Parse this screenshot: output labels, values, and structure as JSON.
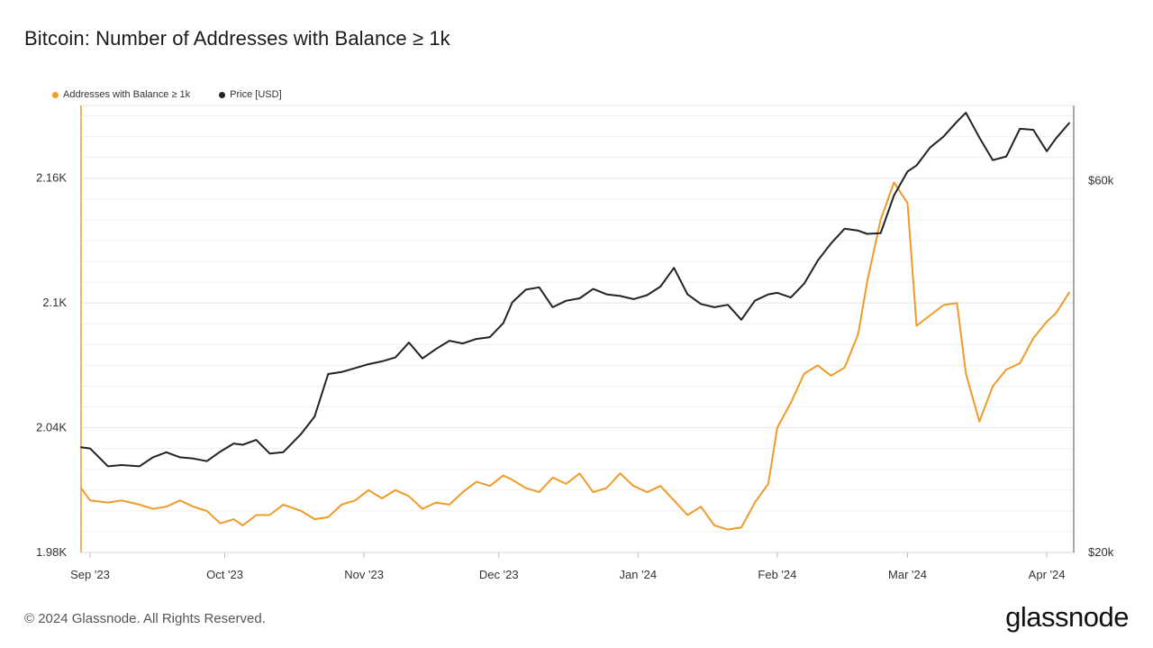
{
  "title": "Bitcoin: Number of Addresses with Balance ≥ 1k",
  "footer": "© 2024 Glassnode. All Rights Reserved.",
  "brand": "glassnode",
  "chart_data": {
    "type": "line",
    "title": "Bitcoin: Number of Addresses with Balance ≥ 1k",
    "legend": {
      "placement": "top-left",
      "entries": [
        "Addresses with Balance ≥ 1k",
        "Price [USD]"
      ]
    },
    "grid": true,
    "x_range": [
      "2023-08-30",
      "2024-04-07"
    ],
    "x_ticks": [
      {
        "date": "2023-09-01",
        "label": "Sep '23"
      },
      {
        "date": "2023-10-01",
        "label": "Oct '23"
      },
      {
        "date": "2023-11-01",
        "label": "Nov '23"
      },
      {
        "date": "2023-12-01",
        "label": "Dec '23"
      },
      {
        "date": "2024-01-01",
        "label": "Jan '24"
      },
      {
        "date": "2024-02-01",
        "label": "Feb '24"
      },
      {
        "date": "2024-03-01",
        "label": "Mar '24"
      },
      {
        "date": "2024-04-01",
        "label": "Apr '24"
      }
    ],
    "y_left": {
      "range": [
        1980,
        2195
      ],
      "ticks": [
        {
          "value": 1980,
          "label": "1.98K"
        },
        {
          "value": 2040,
          "label": "2.04K"
        },
        {
          "value": 2100,
          "label": "2.1K"
        },
        {
          "value": 2160,
          "label": "2.16K"
        }
      ]
    },
    "y_right": {
      "scale": "log",
      "range": [
        20000,
        75000
      ],
      "ticks": [
        {
          "value": 20000,
          "label": "$20k"
        },
        {
          "value": 60000,
          "label": "$60k"
        }
      ]
    },
    "series": [
      {
        "name": "Addresses with Balance ≥ 1k",
        "color": "#f09a2a",
        "axis": "left",
        "points": [
          [
            "2023-08-30",
            2011
          ],
          [
            "2023-09-01",
            2005
          ],
          [
            "2023-09-05",
            2004
          ],
          [
            "2023-09-08",
            2005
          ],
          [
            "2023-09-12",
            2003
          ],
          [
            "2023-09-15",
            2001
          ],
          [
            "2023-09-18",
            2002
          ],
          [
            "2023-09-21",
            2005
          ],
          [
            "2023-09-24",
            2002
          ],
          [
            "2023-09-27",
            2000
          ],
          [
            "2023-09-30",
            1994
          ],
          [
            "2023-10-03",
            1996
          ],
          [
            "2023-10-05",
            1993
          ],
          [
            "2023-10-08",
            1998
          ],
          [
            "2023-10-11",
            1998
          ],
          [
            "2023-10-14",
            2003
          ],
          [
            "2023-10-18",
            2000
          ],
          [
            "2023-10-21",
            1996
          ],
          [
            "2023-10-24",
            1997
          ],
          [
            "2023-10-27",
            2003
          ],
          [
            "2023-10-30",
            2005
          ],
          [
            "2023-11-02",
            2010
          ],
          [
            "2023-11-05",
            2006
          ],
          [
            "2023-11-08",
            2010
          ],
          [
            "2023-11-11",
            2007
          ],
          [
            "2023-11-14",
            2001
          ],
          [
            "2023-11-17",
            2004
          ],
          [
            "2023-11-20",
            2003
          ],
          [
            "2023-11-23",
            2009
          ],
          [
            "2023-11-26",
            2014
          ],
          [
            "2023-11-29",
            2012
          ],
          [
            "2023-12-02",
            2017
          ],
          [
            "2023-12-04",
            2015
          ],
          [
            "2023-12-07",
            2011
          ],
          [
            "2023-12-10",
            2009
          ],
          [
            "2023-12-13",
            2016
          ],
          [
            "2023-12-16",
            2013
          ],
          [
            "2023-12-19",
            2018
          ],
          [
            "2023-12-22",
            2009
          ],
          [
            "2023-12-25",
            2011
          ],
          [
            "2023-12-28",
            2018
          ],
          [
            "2023-12-31",
            2012
          ],
          [
            "2024-01-03",
            2009
          ],
          [
            "2024-01-06",
            2012
          ],
          [
            "2024-01-09",
            2005
          ],
          [
            "2024-01-12",
            1998
          ],
          [
            "2024-01-15",
            2002
          ],
          [
            "2024-01-18",
            1993
          ],
          [
            "2024-01-21",
            1991
          ],
          [
            "2024-01-24",
            1992
          ],
          [
            "2024-01-27",
            2004
          ],
          [
            "2024-01-30",
            2013
          ],
          [
            "2024-02-01",
            2040
          ],
          [
            "2024-02-04",
            2052
          ],
          [
            "2024-02-07",
            2066
          ],
          [
            "2024-02-10",
            2070
          ],
          [
            "2024-02-13",
            2065
          ],
          [
            "2024-02-16",
            2069
          ],
          [
            "2024-02-19",
            2085
          ],
          [
            "2024-02-21",
            2110
          ],
          [
            "2024-02-24",
            2140
          ],
          [
            "2024-02-27",
            2158
          ],
          [
            "2024-03-01",
            2148
          ],
          [
            "2024-03-03",
            2089
          ],
          [
            "2024-03-06",
            2094
          ],
          [
            "2024-03-09",
            2099
          ],
          [
            "2024-03-12",
            2100
          ],
          [
            "2024-03-14",
            2066
          ],
          [
            "2024-03-17",
            2043
          ],
          [
            "2024-03-20",
            2060
          ],
          [
            "2024-03-23",
            2068
          ],
          [
            "2024-03-26",
            2071
          ],
          [
            "2024-03-29",
            2083
          ],
          [
            "2024-04-01",
            2091
          ],
          [
            "2024-04-03",
            2095
          ],
          [
            "2024-04-06",
            2105
          ]
        ]
      },
      {
        "name": "Price [USD]",
        "color": "#222222",
        "axis": "right",
        "points": [
          [
            "2023-08-30",
            27300
          ],
          [
            "2023-09-01",
            27200
          ],
          [
            "2023-09-05",
            25800
          ],
          [
            "2023-09-08",
            25900
          ],
          [
            "2023-09-12",
            25800
          ],
          [
            "2023-09-15",
            26500
          ],
          [
            "2023-09-18",
            26900
          ],
          [
            "2023-09-21",
            26500
          ],
          [
            "2023-09-24",
            26400
          ],
          [
            "2023-09-27",
            26200
          ],
          [
            "2023-09-30",
            26950
          ],
          [
            "2023-10-03",
            27600
          ],
          [
            "2023-10-05",
            27500
          ],
          [
            "2023-10-08",
            27900
          ],
          [
            "2023-10-11",
            26800
          ],
          [
            "2023-10-14",
            26900
          ],
          [
            "2023-10-18",
            28400
          ],
          [
            "2023-10-21",
            29900
          ],
          [
            "2023-10-24",
            33900
          ],
          [
            "2023-10-27",
            34100
          ],
          [
            "2023-10-30",
            34500
          ],
          [
            "2023-11-02",
            34900
          ],
          [
            "2023-11-05",
            35200
          ],
          [
            "2023-11-08",
            35600
          ],
          [
            "2023-11-11",
            37200
          ],
          [
            "2023-11-14",
            35500
          ],
          [
            "2023-11-17",
            36500
          ],
          [
            "2023-11-20",
            37400
          ],
          [
            "2023-11-23",
            37100
          ],
          [
            "2023-11-26",
            37600
          ],
          [
            "2023-11-29",
            37800
          ],
          [
            "2023-12-02",
            39400
          ],
          [
            "2023-12-04",
            41900
          ],
          [
            "2023-12-07",
            43500
          ],
          [
            "2023-12-10",
            43800
          ],
          [
            "2023-12-13",
            41300
          ],
          [
            "2023-12-16",
            42100
          ],
          [
            "2023-12-19",
            42400
          ],
          [
            "2023-12-22",
            43600
          ],
          [
            "2023-12-25",
            42900
          ],
          [
            "2023-12-28",
            42700
          ],
          [
            "2023-12-31",
            42300
          ],
          [
            "2024-01-03",
            42800
          ],
          [
            "2024-01-06",
            43900
          ],
          [
            "2024-01-09",
            46400
          ],
          [
            "2024-01-12",
            42900
          ],
          [
            "2024-01-15",
            41700
          ],
          [
            "2024-01-18",
            41300
          ],
          [
            "2024-01-21",
            41600
          ],
          [
            "2024-01-24",
            39800
          ],
          [
            "2024-01-27",
            42100
          ],
          [
            "2024-01-30",
            42900
          ],
          [
            "2024-02-01",
            43100
          ],
          [
            "2024-02-04",
            42500
          ],
          [
            "2024-02-07",
            44300
          ],
          [
            "2024-02-10",
            47400
          ],
          [
            "2024-02-13",
            49900
          ],
          [
            "2024-02-16",
            52100
          ],
          [
            "2024-02-19",
            51800
          ],
          [
            "2024-02-21",
            51300
          ],
          [
            "2024-02-24",
            51400
          ],
          [
            "2024-02-27",
            57500
          ],
          [
            "2024-03-01",
            61700
          ],
          [
            "2024-03-03",
            62800
          ],
          [
            "2024-03-06",
            66200
          ],
          [
            "2024-03-09",
            68400
          ],
          [
            "2024-03-12",
            71500
          ],
          [
            "2024-03-14",
            73400
          ],
          [
            "2024-03-17",
            68200
          ],
          [
            "2024-03-20",
            63800
          ],
          [
            "2024-03-23",
            64500
          ],
          [
            "2024-03-26",
            70000
          ],
          [
            "2024-03-29",
            69800
          ],
          [
            "2024-04-01",
            65500
          ],
          [
            "2024-04-03",
            68000
          ],
          [
            "2024-04-06",
            71200
          ]
        ]
      }
    ]
  }
}
